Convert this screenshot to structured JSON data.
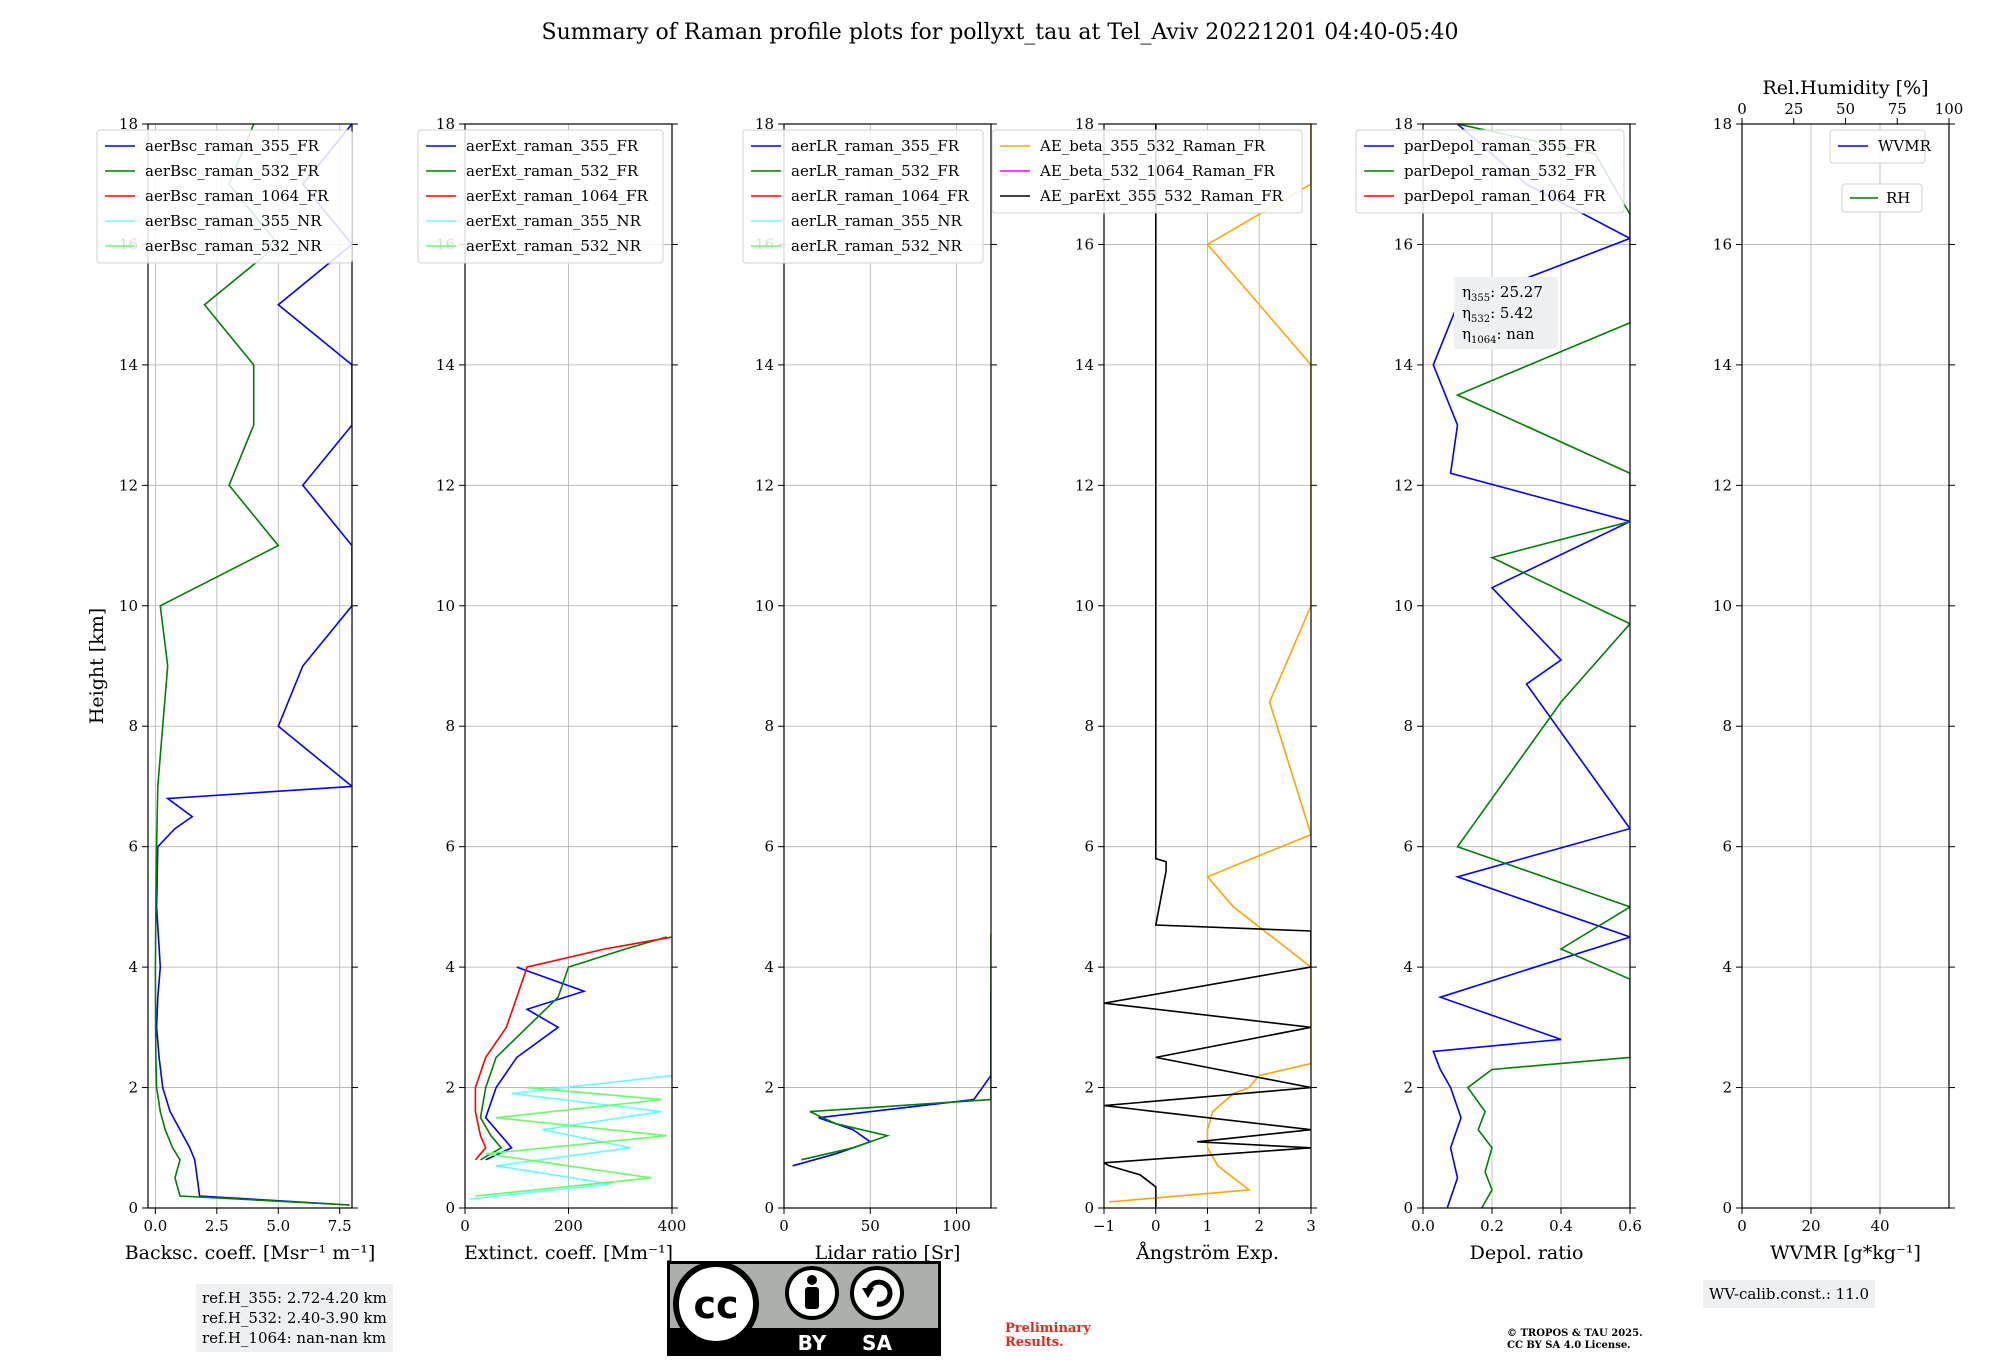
{
  "title": "Summary of Raman profile plots for pollyxt_tau at Tel_Aviv 20221201 04:40-05:40",
  "ylabel": "Height [km]",
  "ref_heights": [
    "ref.H_355: 2.72-4.20 km",
    "ref.H_532: 2.40-3.90 km",
    "ref.H_1064: nan-nan km"
  ],
  "wv_calib": "WV-calib.const.: 11.0",
  "preliminary": [
    "Preliminary",
    "Results."
  ],
  "copyright": [
    "© TROPOS & TAU 2025.",
    "CC BY SA 4.0 License."
  ],
  "license_badge": {
    "top": "cc",
    "left": "BY",
    "right": "SA"
  },
  "eta_labels": [
    {
      "sym": "η",
      "sub": "355",
      "value": ": 25.27"
    },
    {
      "sym": "η",
      "sub": "532",
      "value": ": 5.42"
    },
    {
      "sym": "η",
      "sub": "1064",
      "value": ": nan"
    }
  ],
  "colors": {
    "355": "#0000ff",
    "532": "#008000",
    "1064": "#ff0000",
    "355_NR": "#66ffff",
    "532_NR": "#66ff66",
    "ae_beta_355_532": "#ffa500",
    "ae_beta_532_1064": "#ff00ff",
    "ae_parext": "#000000"
  },
  "chart_data": [
    {
      "type": "line",
      "id": "backscatter",
      "xlabel": "Backsc. coeff. [Msr⁻¹ m⁻¹]",
      "xlim": [
        -0.3,
        8.0
      ],
      "xticks": [
        0.0,
        2.5,
        5.0,
        7.5
      ],
      "xticklabels": [
        "0.0",
        "2.5",
        "5.0",
        "7.5"
      ],
      "ylim": [
        0,
        18
      ],
      "yticks": [
        0,
        2,
        4,
        6,
        8,
        10,
        12,
        14,
        16,
        18
      ],
      "legend": [
        "aerBsc_raman_355_FR",
        "aerBsc_raman_532_FR",
        "aerBsc_raman_1064_FR",
        "aerBsc_raman_355_NR",
        "aerBsc_raman_532_NR"
      ],
      "legend_colors": [
        "355",
        "532",
        "1064",
        "355_NR",
        "532_NR"
      ],
      "series": [
        {
          "name": "aerBsc_raman_355_FR",
          "color": "355",
          "y": [
            0.05,
            0.2,
            0.5,
            0.8,
            1.0,
            1.3,
            1.6,
            2.0,
            2.5,
            3.0,
            3.5,
            4.0,
            5.0,
            6.0,
            6.3,
            6.5,
            6.8,
            7.0,
            8.0,
            9.0,
            10.0,
            11.0,
            12.0,
            13.0,
            14.0,
            15.0,
            16.0,
            17.0,
            18.0
          ],
          "x": [
            7.9,
            1.8,
            1.7,
            1.6,
            1.4,
            1.0,
            0.6,
            0.3,
            0.15,
            0.05,
            0.1,
            0.2,
            0.05,
            0.1,
            0.8,
            1.5,
            0.5,
            8.0,
            5.0,
            6.0,
            8.0,
            8.0,
            6.0,
            8.0,
            8.0,
            5.0,
            8.0,
            6.0,
            8.0
          ]
        },
        {
          "name": "aerBsc_raman_532_FR",
          "color": "532",
          "y": [
            0.05,
            0.2,
            0.5,
            0.8,
            1.0,
            1.3,
            1.6,
            2.0,
            2.5,
            3.0,
            4.0,
            5.0,
            6.0,
            7.0,
            8.0,
            9.0,
            10.0,
            11.0,
            12.0,
            13.0,
            14.0,
            15.0,
            16.0,
            17.0,
            18.0
          ],
          "x": [
            7.9,
            1.0,
            0.8,
            1.0,
            0.7,
            0.4,
            0.2,
            0.05,
            0.02,
            0.01,
            0.0,
            0.02,
            0.05,
            0.1,
            0.3,
            0.5,
            0.2,
            5.0,
            3.0,
            4.0,
            4.0,
            2.0,
            5.0,
            3.0,
            4.0
          ]
        }
      ]
    },
    {
      "type": "line",
      "id": "extinction",
      "xlabel": "Extinct. coeff. [Mm⁻¹]",
      "xlim": [
        0,
        400
      ],
      "xticks": [
        0,
        200,
        400
      ],
      "xticklabels": [
        "0",
        "200",
        "400"
      ],
      "ylim": [
        0,
        18
      ],
      "yticks": [
        0,
        2,
        4,
        6,
        8,
        10,
        12,
        14,
        16,
        18
      ],
      "legend": [
        "aerExt_raman_355_FR",
        "aerExt_raman_532_FR",
        "aerExt_raman_1064_FR",
        "aerExt_raman_355_NR",
        "aerExt_raman_532_NR"
      ],
      "legend_colors": [
        "355",
        "532",
        "1064",
        "355_NR",
        "532_NR"
      ],
      "series": [
        {
          "name": "aerExt_raman_355_FR",
          "color": "355",
          "y": [
            0.8,
            1.0,
            1.2,
            1.5,
            2.0,
            2.5,
            3.0,
            3.3,
            3.6,
            4.0
          ],
          "x": [
            40,
            90,
            70,
            40,
            60,
            100,
            180,
            120,
            230,
            100
          ]
        },
        {
          "name": "aerExt_raman_532_FR",
          "color": "532",
          "y": [
            0.8,
            1.0,
            1.2,
            1.5,
            2.0,
            2.5,
            3.0,
            3.5,
            4.0,
            4.3,
            4.5
          ],
          "x": [
            30,
            70,
            50,
            30,
            40,
            60,
            120,
            180,
            200,
            310,
            390
          ]
        },
        {
          "name": "aerExt_raman_1064_FR",
          "color": "1064",
          "y": [
            0.8,
            1.0,
            1.2,
            1.6,
            2.0,
            2.5,
            3.0,
            3.5,
            4.0,
            4.3,
            4.5
          ],
          "x": [
            20,
            40,
            30,
            20,
            20,
            40,
            80,
            100,
            120,
            270,
            400
          ]
        },
        {
          "name": "aerExt_raman_355_NR",
          "color": "355_NR",
          "y": [
            0.15,
            0.4,
            0.7,
            1.0,
            1.3,
            1.6,
            1.9,
            2.2
          ],
          "x": [
            10,
            280,
            60,
            320,
            150,
            380,
            90,
            400
          ]
        },
        {
          "name": "aerExt_raman_532_NR",
          "color": "532_NR",
          "y": [
            0.2,
            0.5,
            0.9,
            1.2,
            1.5,
            1.8,
            2.0
          ],
          "x": [
            20,
            360,
            40,
            390,
            60,
            380,
            120
          ]
        }
      ]
    },
    {
      "type": "line",
      "id": "lidar_ratio",
      "xlabel": "Lidar ratio [Sr]",
      "xlim": [
        0,
        120
      ],
      "xticks": [
        0,
        50,
        100
      ],
      "xticklabels": [
        "0",
        "50",
        "100"
      ],
      "ylim": [
        0,
        18
      ],
      "yticks": [
        0,
        2,
        4,
        6,
        8,
        10,
        12,
        14,
        16,
        18
      ],
      "legend": [
        "aerLR_raman_355_FR",
        "aerLR_raman_532_FR",
        "aerLR_raman_1064_FR",
        "aerLR_raman_355_NR",
        "aerLR_raman_532_NR"
      ],
      "legend_colors": [
        "355",
        "532",
        "1064",
        "355_NR",
        "532_NR"
      ],
      "series": [
        {
          "name": "aerLR_raman_355_FR",
          "color": "355",
          "y": [
            0.7,
            0.9,
            1.1,
            1.3,
            1.5,
            1.8,
            2.2,
            2.6,
            3.0,
            3.4,
            3.6
          ],
          "x": [
            5,
            30,
            50,
            40,
            20,
            110,
            120,
            120,
            120,
            120,
            120
          ]
        },
        {
          "name": "aerLR_raman_532_FR",
          "color": "532",
          "y": [
            0.8,
            1.0,
            1.2,
            1.4,
            1.6,
            1.8,
            2.0,
            2.5,
            2.7,
            3.8,
            4.2,
            4.55
          ],
          "x": [
            10,
            40,
            60,
            30,
            15,
            120,
            120,
            120,
            120,
            120,
            120,
            120
          ]
        }
      ]
    },
    {
      "type": "line",
      "id": "angstrom",
      "xlabel": "Ångström Exp.",
      "xlim": [
        -1,
        3
      ],
      "xticks": [
        -1,
        0,
        1,
        2,
        3
      ],
      "xticklabels": [
        "−1",
        "0",
        "1",
        "2",
        "3"
      ],
      "ylim": [
        0,
        18
      ],
      "yticks": [
        0,
        2,
        4,
        6,
        8,
        10,
        12,
        14,
        16,
        18
      ],
      "legend": [
        "AE_beta_355_532_Raman_FR",
        "AE_beta_532_1064_Raman_FR",
        "AE_parExt_355_532_Raman_FR"
      ],
      "legend_colors": [
        "ae_beta_355_532",
        "ae_beta_532_1064",
        "ae_parext"
      ],
      "series": [
        {
          "name": "AE_beta_355_532_Raman_FR",
          "color": "ae_beta_355_532",
          "y": [
            0.1,
            0.3,
            0.5,
            0.7,
            1.0,
            1.3,
            1.6,
            1.9,
            2.0,
            2.2,
            2.4,
            3.0,
            4.0,
            5.0,
            5.5,
            6.2,
            8.4,
            10.0,
            12.0,
            13.0,
            14.0,
            16.0,
            17.0,
            18.0
          ],
          "x": [
            -0.9,
            1.8,
            1.5,
            1.2,
            1.0,
            1.0,
            1.1,
            1.5,
            1.8,
            2.0,
            3.0,
            3.0,
            3.0,
            1.5,
            1.0,
            3.0,
            2.2,
            3.0,
            3.0,
            3.0,
            3.0,
            1.0,
            3.0,
            3.0
          ]
        },
        {
          "name": "AE_parExt_355_532_Raman_FR",
          "color": "ae_parext",
          "y": [
            0,
            0.35,
            0.55,
            0.7,
            0.75,
            1.0,
            1.1,
            1.3,
            1.7,
            2.0,
            2.5,
            3.0,
            3.4,
            4.0,
            4.6,
            4.7,
            5.6,
            5.75,
            5.8,
            18.0
          ],
          "x": [
            0,
            0,
            -0.3,
            -0.9,
            -1.0,
            3.0,
            0.8,
            3.0,
            -1.0,
            3.0,
            0.0,
            3.0,
            -1.0,
            3.0,
            3.0,
            0.0,
            0.2,
            0.2,
            0.0,
            0.0
          ]
        }
      ]
    },
    {
      "type": "line",
      "id": "depol",
      "xlabel": "Depol. ratio",
      "xlim": [
        0,
        0.6
      ],
      "xticks": [
        0.0,
        0.2,
        0.4,
        0.6
      ],
      "xticklabels": [
        "0.0",
        "0.2",
        "0.4",
        "0.6"
      ],
      "ylim": [
        0,
        18
      ],
      "yticks": [
        0,
        2,
        4,
        6,
        8,
        10,
        12,
        14,
        16,
        18
      ],
      "legend": [
        "parDepol_raman_355_FR",
        "parDepol_raman_532_FR",
        "parDepol_raman_1064_FR"
      ],
      "legend_colors": [
        "355",
        "532",
        "1064"
      ],
      "series": [
        {
          "name": "parDepol_raman_355_FR",
          "color": "355",
          "y": [
            0,
            0.5,
            1.0,
            1.5,
            2.0,
            2.3,
            2.6,
            2.8,
            3.5,
            4.5,
            5.5,
            6.3,
            8.7,
            9.1,
            10.3,
            11.4,
            12.2,
            13.0,
            14.0,
            15.0,
            16.1,
            17.0,
            18.0
          ],
          "x": [
            0.07,
            0.1,
            0.08,
            0.11,
            0.08,
            0.05,
            0.03,
            0.4,
            0.05,
            0.6,
            0.1,
            0.6,
            0.3,
            0.4,
            0.2,
            0.6,
            0.08,
            0.1,
            0.03,
            0.1,
            0.6,
            0.3,
            0.1
          ]
        },
        {
          "name": "parDepol_raman_532_FR",
          "color": "532",
          "y": [
            0,
            0.3,
            0.6,
            1.0,
            1.3,
            1.6,
            2.0,
            2.3,
            2.5,
            3.0,
            3.8,
            4.3,
            5.0,
            6.0,
            8.4,
            9.7,
            10.8,
            11.4,
            12.2,
            13.5,
            14.7,
            15.6,
            16.5,
            17.5,
            18.0
          ],
          "x": [
            0.17,
            0.2,
            0.18,
            0.2,
            0.16,
            0.18,
            0.13,
            0.2,
            0.6,
            0.6,
            0.6,
            0.4,
            0.6,
            0.1,
            0.4,
            0.6,
            0.2,
            0.6,
            0.6,
            0.1,
            0.6,
            0.6,
            0.6,
            0.5,
            0.1
          ]
        }
      ]
    },
    {
      "type": "line",
      "id": "wvmr",
      "xlabel": "WVMR [g*kg⁻¹]",
      "xlim": [
        0,
        60
      ],
      "xticks": [
        0,
        20,
        40
      ],
      "xticklabels": [
        "0",
        "20",
        "40"
      ],
      "top_xlabel": "Rel.Humidity [%]",
      "top_xlim": [
        0,
        100
      ],
      "top_xticks": [
        0,
        25,
        50,
        75,
        100
      ],
      "top_xticklabels": [
        "0",
        "25",
        "50",
        "75",
        "100"
      ],
      "ylim": [
        0,
        18
      ],
      "yticks": [
        0,
        2,
        4,
        6,
        8,
        10,
        12,
        14,
        16,
        18
      ],
      "legend": [
        "WVMR"
      ],
      "legend_colors": [
        "355"
      ],
      "legend2": [
        "RH"
      ],
      "legend2_colors": [
        "532"
      ],
      "series": []
    }
  ]
}
